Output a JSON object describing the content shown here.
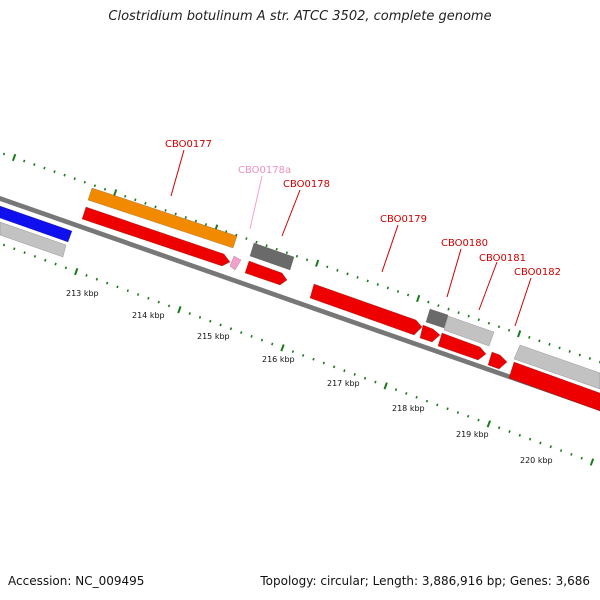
{
  "title": "Clostridium botulinum A str. ATCC 3502, complete genome",
  "footer": {
    "accession": "Accession: NC_009495",
    "topology": "Topology: circular; Length: 3,886,916 bp; Genes: 3,686"
  },
  "colors": {
    "backbone": "#777777",
    "tick": "#1a7a1a",
    "label": "#cc0000",
    "label_light": "#f08fc0",
    "label_line": "#cc0000",
    "label_line_light": "#f5a0cc",
    "red": "#ee0000",
    "orange": "#f28a00",
    "blue": "#1010ee",
    "dark_gray": "#6a6a6a",
    "light_gray": "#c2c2c2",
    "pink": "#f5a0cc"
  },
  "genes": [
    {
      "id": "CBO0177",
      "label": "CBO0177",
      "color": "orange"
    },
    {
      "id": "CBO0178a",
      "label": "CBO0178a",
      "color": "pink"
    },
    {
      "id": "CBO0178",
      "label": "CBO0178",
      "color": "dark_gray"
    },
    {
      "id": "CBO0179",
      "label": "CBO0179",
      "color": "red"
    },
    {
      "id": "CBO0180",
      "label": "CBO0180",
      "color": "dark_gray"
    },
    {
      "id": "CBO0181",
      "label": "CBO0181",
      "color": "light_gray"
    },
    {
      "id": "CBO0182",
      "label": "CBO0182",
      "color": "light_gray"
    }
  ],
  "tick_labels": [
    "213 kbp",
    "214 kbp",
    "215 kbp",
    "216 kbp",
    "217 kbp",
    "218 kbp",
    "219 kbp",
    "220 kbp"
  ]
}
